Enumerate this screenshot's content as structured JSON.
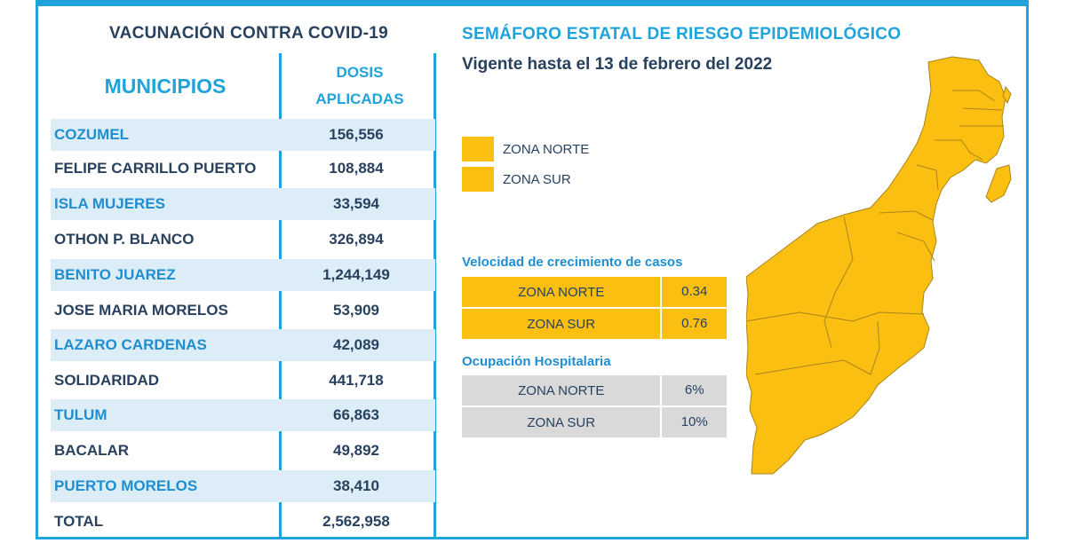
{
  "left": {
    "title": "VACUNACIÓN CONTRA COVID-19",
    "col_municipios": "MUNICIPIOS",
    "col_dosis_line1": "DOSIS",
    "col_dosis_line2": "APLICADAS",
    "rows": [
      {
        "municipio": "COZUMEL",
        "dosis": "156,556"
      },
      {
        "municipio": "FELIPE CARRILLO PUERTO",
        "dosis": "108,884"
      },
      {
        "municipio": "ISLA MUJERES",
        "dosis": "33,594"
      },
      {
        "municipio": "OTHON P. BLANCO",
        "dosis": "326,894"
      },
      {
        "municipio": "BENITO JUAREZ",
        "dosis": "1,244,149"
      },
      {
        "municipio": "JOSE MARIA MORELOS",
        "dosis": "53,909"
      },
      {
        "municipio": "LAZARO CARDENAS",
        "dosis": "42,089"
      },
      {
        "municipio": "SOLIDARIDAD",
        "dosis": "441,718"
      },
      {
        "municipio": "TULUM",
        "dosis": "66,863"
      },
      {
        "municipio": "BACALAR",
        "dosis": "49,892"
      },
      {
        "municipio": "PUERTO MORELOS",
        "dosis": "38,410"
      }
    ],
    "total": {
      "label": "TOTAL",
      "dosis": "2,562,958"
    }
  },
  "right": {
    "title": "SEMÁFORO ESTATAL DE RIESGO EPIDEMIOLÓGICO",
    "subtitle": "Vigente hasta el 13 de febrero del 2022",
    "legend": [
      {
        "label": "ZONA NORTE",
        "color": "#fbbf12"
      },
      {
        "label": "ZONA SUR",
        "color": "#fbbf12"
      }
    ],
    "velocidad": {
      "title": "Velocidad de crecimiento de casos",
      "rows": [
        {
          "zona": "ZONA NORTE",
          "valor": "0.34"
        },
        {
          "zona": "ZONA SUR",
          "valor": "0.76"
        }
      ]
    },
    "ocupacion": {
      "title": "Ocupación Hospitalaria",
      "rows": [
        {
          "zona": "ZONA NORTE",
          "valor": "6%"
        },
        {
          "zona": "ZONA SUR",
          "valor": "10%"
        }
      ]
    }
  },
  "colors": {
    "accent": "#1fa3dc",
    "dark_text": "#27415f",
    "zone_yellow": "#fbbf12",
    "row_shade": "#dcedf7",
    "gray_row": "#d9d9d9"
  }
}
